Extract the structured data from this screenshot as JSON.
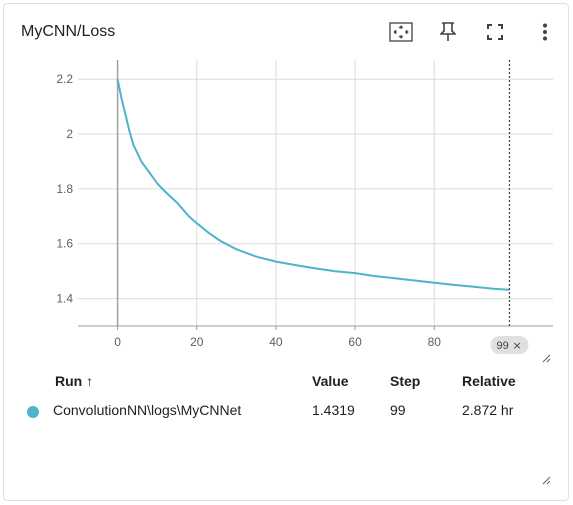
{
  "card": {
    "title": "MyCNN/Loss"
  },
  "toolbar": {
    "fit_icon": "fit-domain-icon",
    "pin_icon": "pin-icon",
    "fullscreen_icon": "fullscreen-icon",
    "menu_icon": "more-vert-icon"
  },
  "chart_data": {
    "type": "line",
    "title": "",
    "xlabel": "",
    "ylabel": "",
    "xlim": [
      -10,
      110
    ],
    "ylim": [
      1.3,
      2.27
    ],
    "x_ticks": [
      0,
      20,
      40,
      60,
      80
    ],
    "y_ticks": [
      1.4,
      1.6,
      1.8,
      2,
      2.2
    ],
    "x_tick_labels": [
      "0",
      "20",
      "40",
      "60",
      "80"
    ],
    "y_tick_labels": [
      "1.4",
      "1.6",
      "1.8",
      "2",
      "2.2"
    ],
    "grid": true,
    "cursor_step": 99,
    "cursor_label": "99",
    "series": [
      {
        "color": "#4fb3cc",
        "x": [
          0,
          1,
          2,
          3,
          4,
          5,
          6,
          8,
          10,
          12,
          15,
          18,
          20,
          23,
          26,
          30,
          35,
          40,
          45,
          50,
          55,
          60,
          65,
          70,
          75,
          80,
          85,
          90,
          95,
          99
        ],
        "y": [
          2.2,
          2.13,
          2.07,
          2.01,
          1.96,
          1.93,
          1.9,
          1.86,
          1.82,
          1.79,
          1.75,
          1.7,
          1.675,
          1.64,
          1.61,
          1.58,
          1.553,
          1.535,
          1.522,
          1.51,
          1.5,
          1.493,
          1.482,
          1.474,
          1.466,
          1.458,
          1.45,
          1.443,
          1.436,
          1.4319
        ]
      }
    ]
  },
  "runs_table": {
    "headers": {
      "run": "Run ↑",
      "value": "Value",
      "step": "Step",
      "relative": "Relative"
    },
    "rows": [
      {
        "color": "#4fb3cc",
        "run": "ConvolutionNN\\logs\\MyCNNet",
        "value": "1.4319",
        "step": "99",
        "relative": "2.872 hr"
      }
    ]
  }
}
